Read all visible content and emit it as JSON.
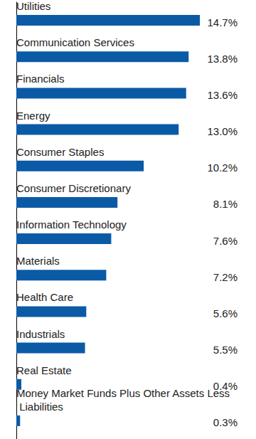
{
  "chart_data": {
    "type": "bar",
    "orientation": "horizontal",
    "categories": [
      "Utilities",
      "Communication Services",
      "Financials",
      "Energy",
      "Consumer Staples",
      "Consumer Discretionary",
      "Information Technology",
      "Materials",
      "Health Care",
      "Industrials",
      "Real Estate",
      "Money Market Funds Plus Other Assets Less Liabilities"
    ],
    "values": [
      14.7,
      13.8,
      13.6,
      13.0,
      10.2,
      8.1,
      7.6,
      7.2,
      5.6,
      5.5,
      0.4,
      0.3
    ],
    "value_labels": [
      "14.7%",
      "13.8%",
      "13.6%",
      "13.0%",
      "10.2%",
      "8.1%",
      "7.6%",
      "7.2%",
      "5.6%",
      "5.5%",
      "0.4%",
      "0.3%"
    ],
    "color": "#0b5aa6",
    "xlim": [
      0,
      18
    ],
    "grid": false,
    "data_labels": true,
    "tick_labels": false
  }
}
